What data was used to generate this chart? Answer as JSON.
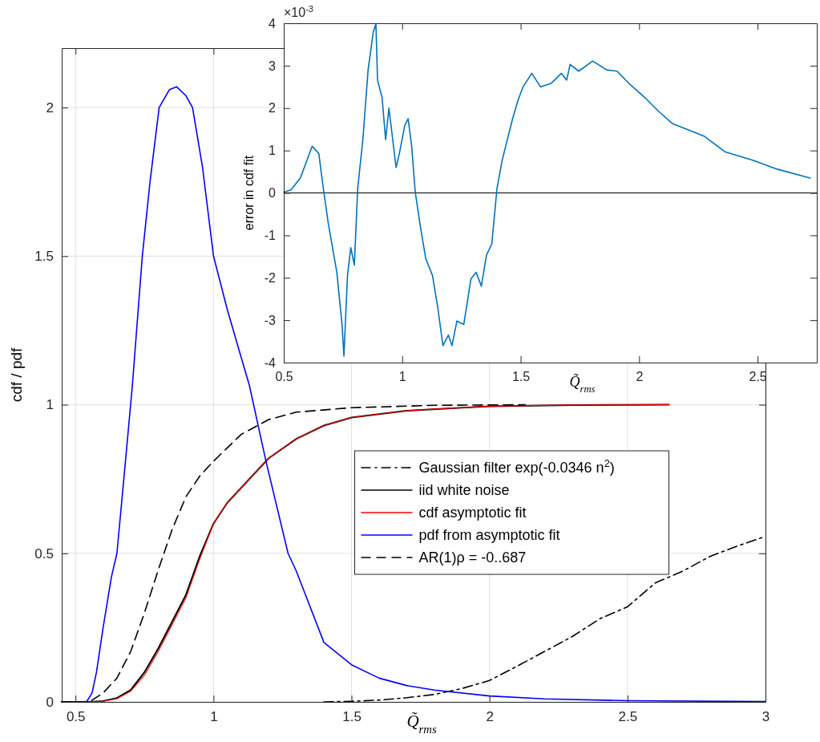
{
  "chart_data": [
    {
      "type": "line",
      "xlabel": "Q̃$_{rms}$",
      "ylabel": "cdf / pdf",
      "xlim": [
        0.45,
        3
      ],
      "ylim": [
        0,
        2.2
      ],
      "xticks": [
        0.5,
        1,
        1.5,
        2,
        2.5,
        3
      ],
      "yticks": [
        0,
        0.5,
        1,
        1.5,
        2
      ],
      "grid": true,
      "legend": "right",
      "series": [
        {
          "name": "Gaussian filter exp(-0.0346 n$^{2}$)",
          "color": "#000000",
          "line_style": "dashdot",
          "x": [
            1.4,
            1.5,
            1.6,
            1.7,
            1.8,
            1.9,
            2.0,
            2.1,
            2.2,
            2.3,
            2.4,
            2.5,
            2.6,
            2.7,
            2.8,
            2.9,
            3.0
          ],
          "values": [
            0,
            0.002,
            0.006,
            0.014,
            0.025,
            0.045,
            0.072,
            0.12,
            0.17,
            0.22,
            0.28,
            0.32,
            0.4,
            0.44,
            0.49,
            0.525,
            0.557
          ]
        },
        {
          "name": "iid white noise",
          "color": "#000000",
          "line_style": "solid",
          "x": [
            0.45,
            0.55,
            0.6,
            0.65,
            0.7,
            0.75,
            0.8,
            0.85,
            0.9,
            0.95,
            1.0,
            1.05,
            1.1,
            1.2,
            1.3,
            1.4,
            1.5,
            1.7,
            2.0,
            2.3,
            2.65
          ],
          "values": [
            0,
            0,
            0.003,
            0.013,
            0.04,
            0.1,
            0.18,
            0.27,
            0.36,
            0.49,
            0.6,
            0.67,
            0.72,
            0.82,
            0.885,
            0.93,
            0.957,
            0.98,
            0.995,
            0.999,
            1.0
          ]
        },
        {
          "name": "cdf asymptotic fit",
          "color": "#ff0000",
          "line_style": "solid",
          "x": [
            0.45,
            0.55,
            0.6,
            0.65,
            0.7,
            0.75,
            0.8,
            0.85,
            0.9,
            0.95,
            1.0,
            1.05,
            1.1,
            1.2,
            1.3,
            1.4,
            1.5,
            1.7,
            2.0,
            2.3,
            2.65
          ],
          "values": [
            0,
            0,
            0.002,
            0.011,
            0.036,
            0.09,
            0.17,
            0.26,
            0.35,
            0.48,
            0.6,
            0.67,
            0.72,
            0.82,
            0.885,
            0.93,
            0.957,
            0.98,
            0.995,
            0.999,
            1.0
          ]
        },
        {
          "name": "pdf from asymptotic fit",
          "color": "#0000ff",
          "line_style": "solid",
          "x": [
            0.45,
            0.54,
            0.56,
            0.576,
            0.6,
            0.63,
            0.65,
            0.68,
            0.706,
            0.742,
            0.77,
            0.803,
            0.84,
            0.866,
            0.9,
            0.924,
            0.96,
            1.0,
            1.05,
            1.1,
            1.13,
            1.19,
            1.27,
            1.3,
            1.4,
            1.5,
            1.6,
            1.7,
            1.8,
            2.0,
            2.2,
            2.5,
            3.0
          ],
          "values": [
            0,
            0,
            0.03,
            0.1,
            0.25,
            0.42,
            0.5,
            0.8,
            1.065,
            1.5,
            1.75,
            2.0,
            2.06,
            2.07,
            2.04,
            2.0,
            1.8,
            1.5,
            1.32,
            1.16,
            1.065,
            0.81,
            0.5,
            0.44,
            0.2,
            0.125,
            0.08,
            0.055,
            0.04,
            0.02,
            0.01,
            0.004,
            0.001
          ]
        },
        {
          "name": "AR(1)ρ = -0..687",
          "color": "#000000",
          "line_style": "dashed",
          "x": [
            0.45,
            0.55,
            0.6,
            0.65,
            0.7,
            0.75,
            0.8,
            0.85,
            0.9,
            0.95,
            1.0,
            1.1,
            1.2,
            1.3,
            1.5,
            1.8,
            2.13
          ],
          "values": [
            0,
            0,
            0.03,
            0.08,
            0.17,
            0.3,
            0.445,
            0.58,
            0.69,
            0.76,
            0.81,
            0.9,
            0.95,
            0.975,
            0.99,
            0.998,
            1.0
          ]
        }
      ]
    },
    {
      "type": "line",
      "xlabel": "Q̃$_{rms}$",
      "ylabel": "error in cdf fit",
      "xlim": [
        0.5,
        2.75
      ],
      "ylim": [
        -4,
        4
      ],
      "xticks": [
        0.5,
        1,
        1.5,
        2,
        2.5
      ],
      "yticks": [
        -4,
        -3,
        -2,
        -1,
        0,
        1,
        2,
        3,
        4
      ],
      "annotations": [
        "×10$^{-3}$"
      ],
      "ref_lines": [
        {
          "axis": "y",
          "value": 0,
          "color": "#000000"
        }
      ],
      "series": [
        {
          "color": "#0072bd",
          "x": [
            0.5,
            0.53,
            0.57,
            0.6,
            0.62,
            0.636,
            0.648,
            0.665,
            0.688,
            0.724,
            0.746,
            0.754,
            0.769,
            0.783,
            0.798,
            0.812,
            0.834,
            0.856,
            0.878,
            0.889,
            0.896,
            0.915,
            0.93,
            0.944,
            0.974,
            0.988,
            1.011,
            1.025,
            1.04,
            1.055,
            1.077,
            1.099,
            1.128,
            1.15,
            1.172,
            1.195,
            1.21,
            1.231,
            1.26,
            1.29,
            1.312,
            1.334,
            1.356,
            1.378,
            1.4,
            1.422,
            1.444,
            1.466,
            1.488,
            1.51,
            1.547,
            1.584,
            1.628,
            1.672,
            1.694,
            1.709,
            1.745,
            1.804,
            1.863,
            1.907,
            1.965,
            2.024,
            2.083,
            2.142,
            2.215,
            2.274,
            2.362,
            2.48,
            2.583,
            2.722
          ],
          "values": [
            0.02,
            0.07,
            0.35,
            0.8,
            1.1,
            1.0,
            0.93,
            0.19,
            -0.72,
            -1.87,
            -3.1,
            -3.85,
            -1.95,
            -1.29,
            -1.7,
            0.1,
            1.26,
            2.9,
            3.8,
            3.98,
            2.66,
            2.25,
            1.26,
            2.0,
            0.6,
            0.93,
            1.59,
            1.75,
            1.1,
            0.02,
            -0.8,
            -1.54,
            -1.95,
            -2.7,
            -3.6,
            -3.35,
            -3.6,
            -3.02,
            -3.1,
            -2.03,
            -1.87,
            -2.2,
            -1.46,
            -1.21,
            0.1,
            0.77,
            1.26,
            1.75,
            2.17,
            2.5,
            2.82,
            2.5,
            2.58,
            2.82,
            2.66,
            3.03,
            2.87,
            3.11,
            2.9,
            2.87,
            2.54,
            2.25,
            1.92,
            1.63,
            1.47,
            1.34,
            0.97,
            0.77,
            0.56,
            0.35
          ]
        }
      ]
    }
  ]
}
